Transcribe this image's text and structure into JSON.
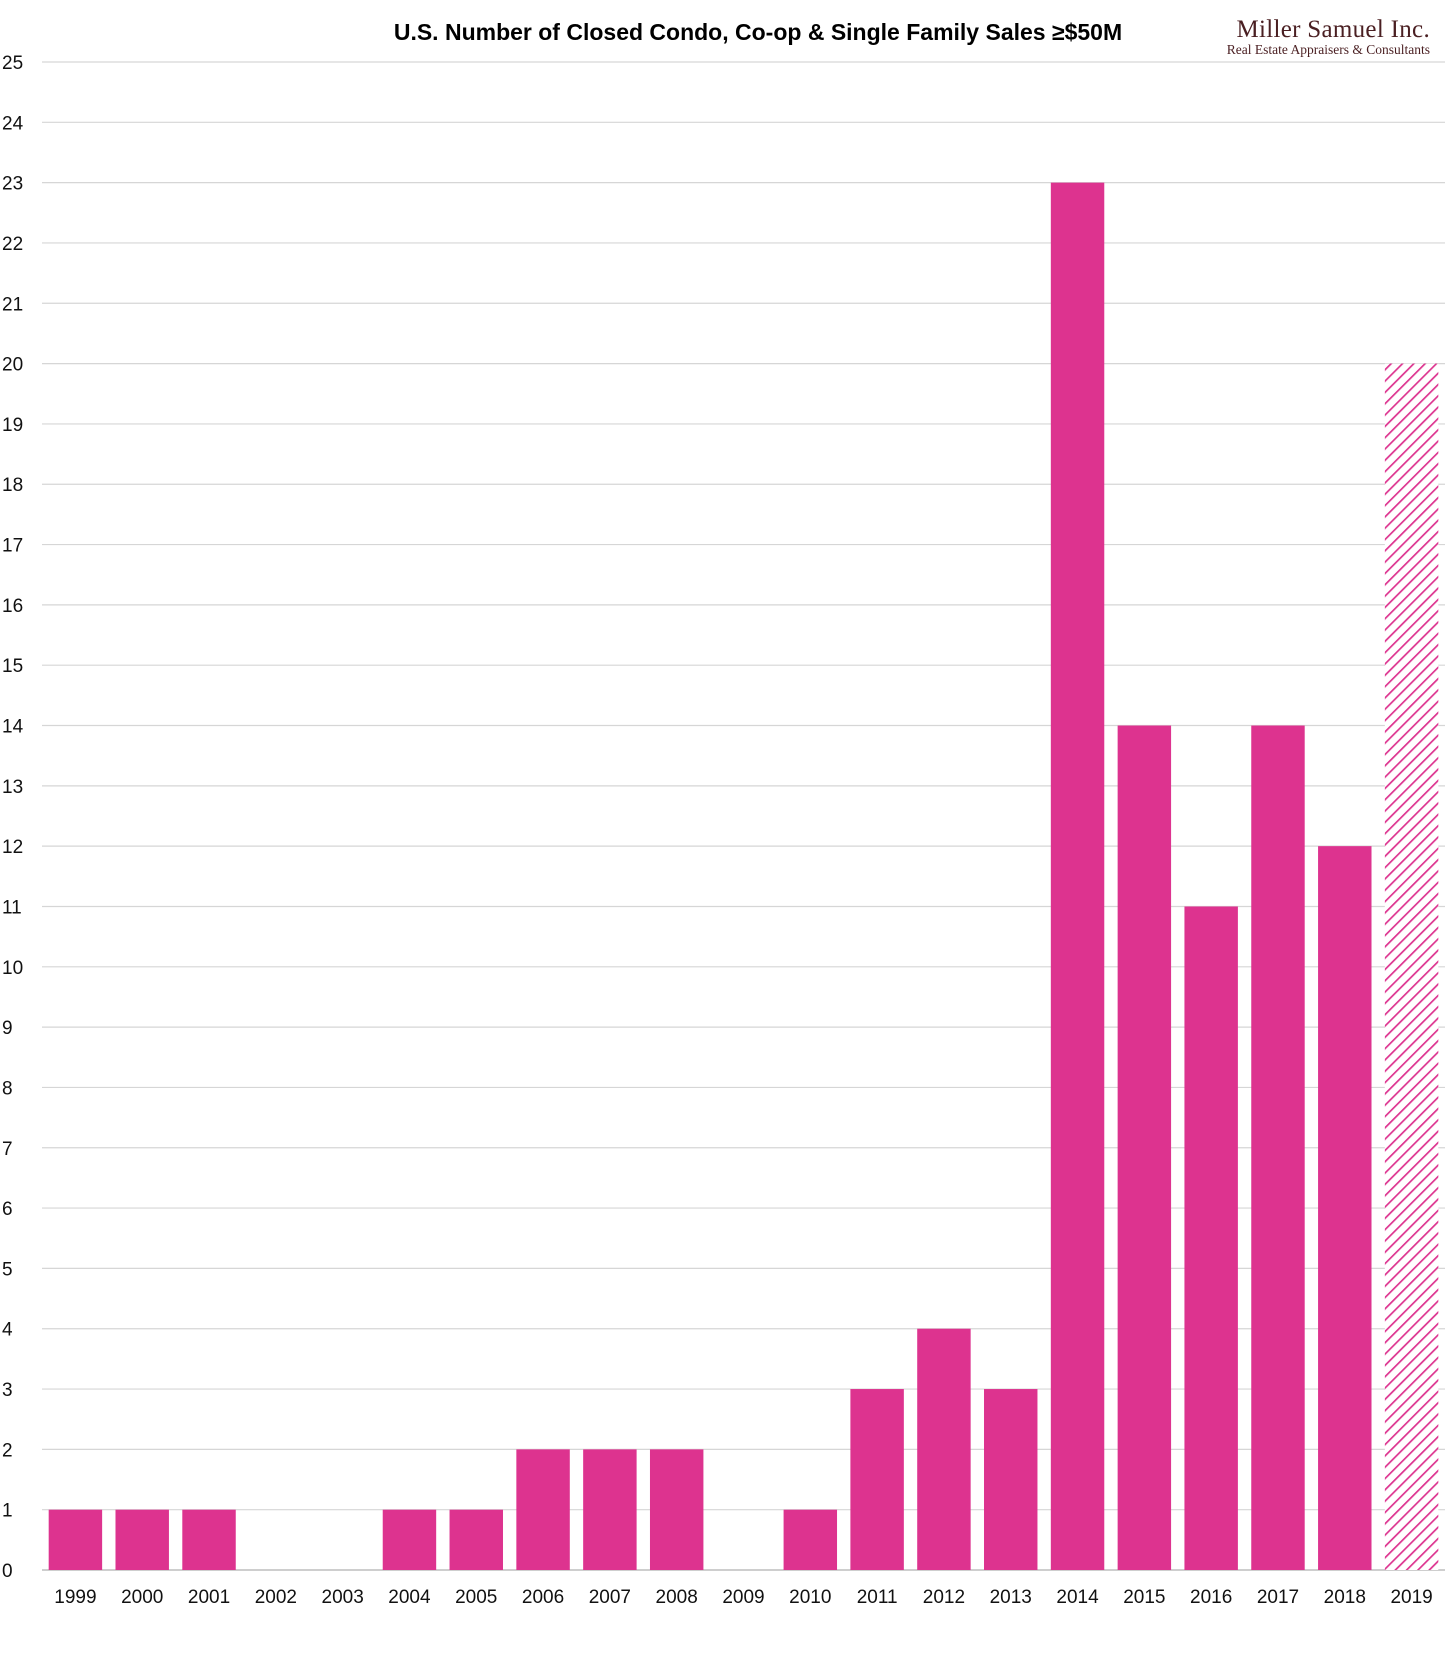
{
  "brand": {
    "name": "Miller Samuel Inc.",
    "tagline": "Real Estate Appraisers & Consultants",
    "color": "#4a1f22"
  },
  "chart_data": {
    "type": "bar",
    "title": "U.S. Number of Closed Condo, Co-op & Single Family Sales ≥$50M",
    "xlabel": "",
    "ylabel": "",
    "ylim": [
      0,
      25
    ],
    "yticks": [
      0,
      1,
      2,
      3,
      4,
      5,
      6,
      7,
      8,
      9,
      10,
      11,
      12,
      13,
      14,
      15,
      16,
      17,
      18,
      19,
      20,
      21,
      22,
      23,
      24,
      25
    ],
    "grid": true,
    "legend": "none",
    "bar_color": "#dd338f",
    "categories": [
      "1999",
      "2000",
      "2001",
      "2002",
      "2003",
      "2004",
      "2005",
      "2006",
      "2007",
      "2008",
      "2009",
      "2010",
      "2011",
      "2012",
      "2013",
      "2014",
      "2015",
      "2016",
      "2017",
      "2018",
      "2019"
    ],
    "values": [
      1,
      1,
      1,
      0,
      0,
      1,
      1,
      2,
      2,
      2,
      0,
      1,
      3,
      4,
      3,
      23,
      14,
      11,
      14,
      12,
      20
    ],
    "hatched_categories": [
      "2019"
    ]
  }
}
